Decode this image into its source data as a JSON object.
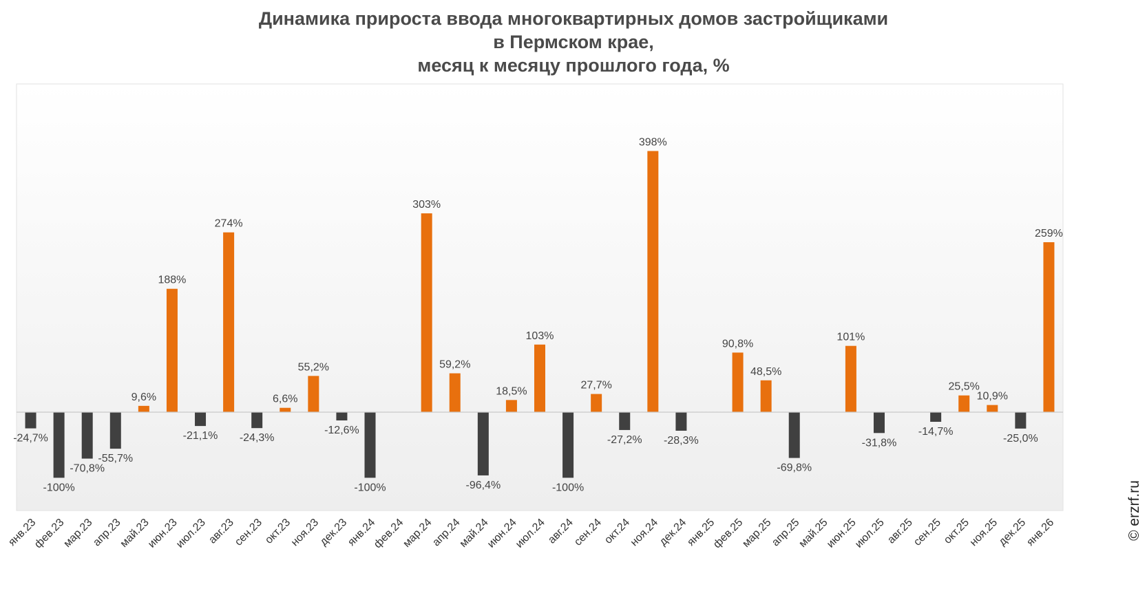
{
  "chart_data": {
    "type": "bar",
    "title_lines": [
      "Динамика прироста ввода многоквартирных домов застройщиками",
      "в Пермском крае,",
      "месяц к месяцу прошлого года, %"
    ],
    "xlabel": "",
    "ylabel": "",
    "categories": [
      "янв.23",
      "фев.23",
      "мар.23",
      "апр.23",
      "май.23",
      "июн.23",
      "июл.23",
      "авг.23",
      "сен.23",
      "окт.23",
      "ноя.23",
      "дек.23",
      "янв.24",
      "фев.24",
      "мар.24",
      "апр.24",
      "май.24",
      "июн.24",
      "июл.24",
      "авг.24",
      "сен.24",
      "окт.24",
      "ноя.24",
      "дек.24",
      "янв.25",
      "фев.25",
      "мар.25",
      "апр.25",
      "май.25",
      "июн.25",
      "июл.25",
      "авг.25",
      "сен.25",
      "окт.25",
      "ноя.25",
      "дек.25",
      "янв.26"
    ],
    "values": [
      -24.7,
      -100,
      -70.8,
      -55.7,
      9.6,
      188,
      -21.1,
      274,
      -24.3,
      6.6,
      55.2,
      -12.6,
      -100,
      null,
      303,
      59.2,
      -96.4,
      18.5,
      103,
      -100,
      27.7,
      -27.2,
      398,
      -28.3,
      null,
      90.8,
      48.5,
      -69.8,
      null,
      101,
      -31.8,
      null,
      -14.7,
      25.5,
      10.9,
      -25.0,
      259
    ],
    "labels": [
      "-24,7%",
      "-100%",
      "-70,8%",
      "-55,7%",
      "9,6%",
      "188%",
      "-21,1%",
      "274%",
      "-24,3%",
      "6,6%",
      "55,2%",
      "-12,6%",
      "-100%",
      "",
      "303%",
      "59,2%",
      "-96,4%",
      "18,5%",
      "103%",
      "-100%",
      "27,7%",
      "-27,2%",
      "398%",
      "-28,3%",
      "",
      "90,8%",
      "48,5%",
      "-69,8%",
      "",
      "101%",
      "-31,8%",
      "",
      "-14,7%",
      "25,5%",
      "10,9%",
      "-25,0%",
      "259%"
    ],
    "ylim": [
      -150,
      500
    ],
    "grid": false,
    "legend": "none",
    "colors": {
      "positive": "#E8700E",
      "negative": "#404040",
      "label": "#444444",
      "axis": "#c8c8c8"
    }
  },
  "watermark": "© erzrf.ru"
}
